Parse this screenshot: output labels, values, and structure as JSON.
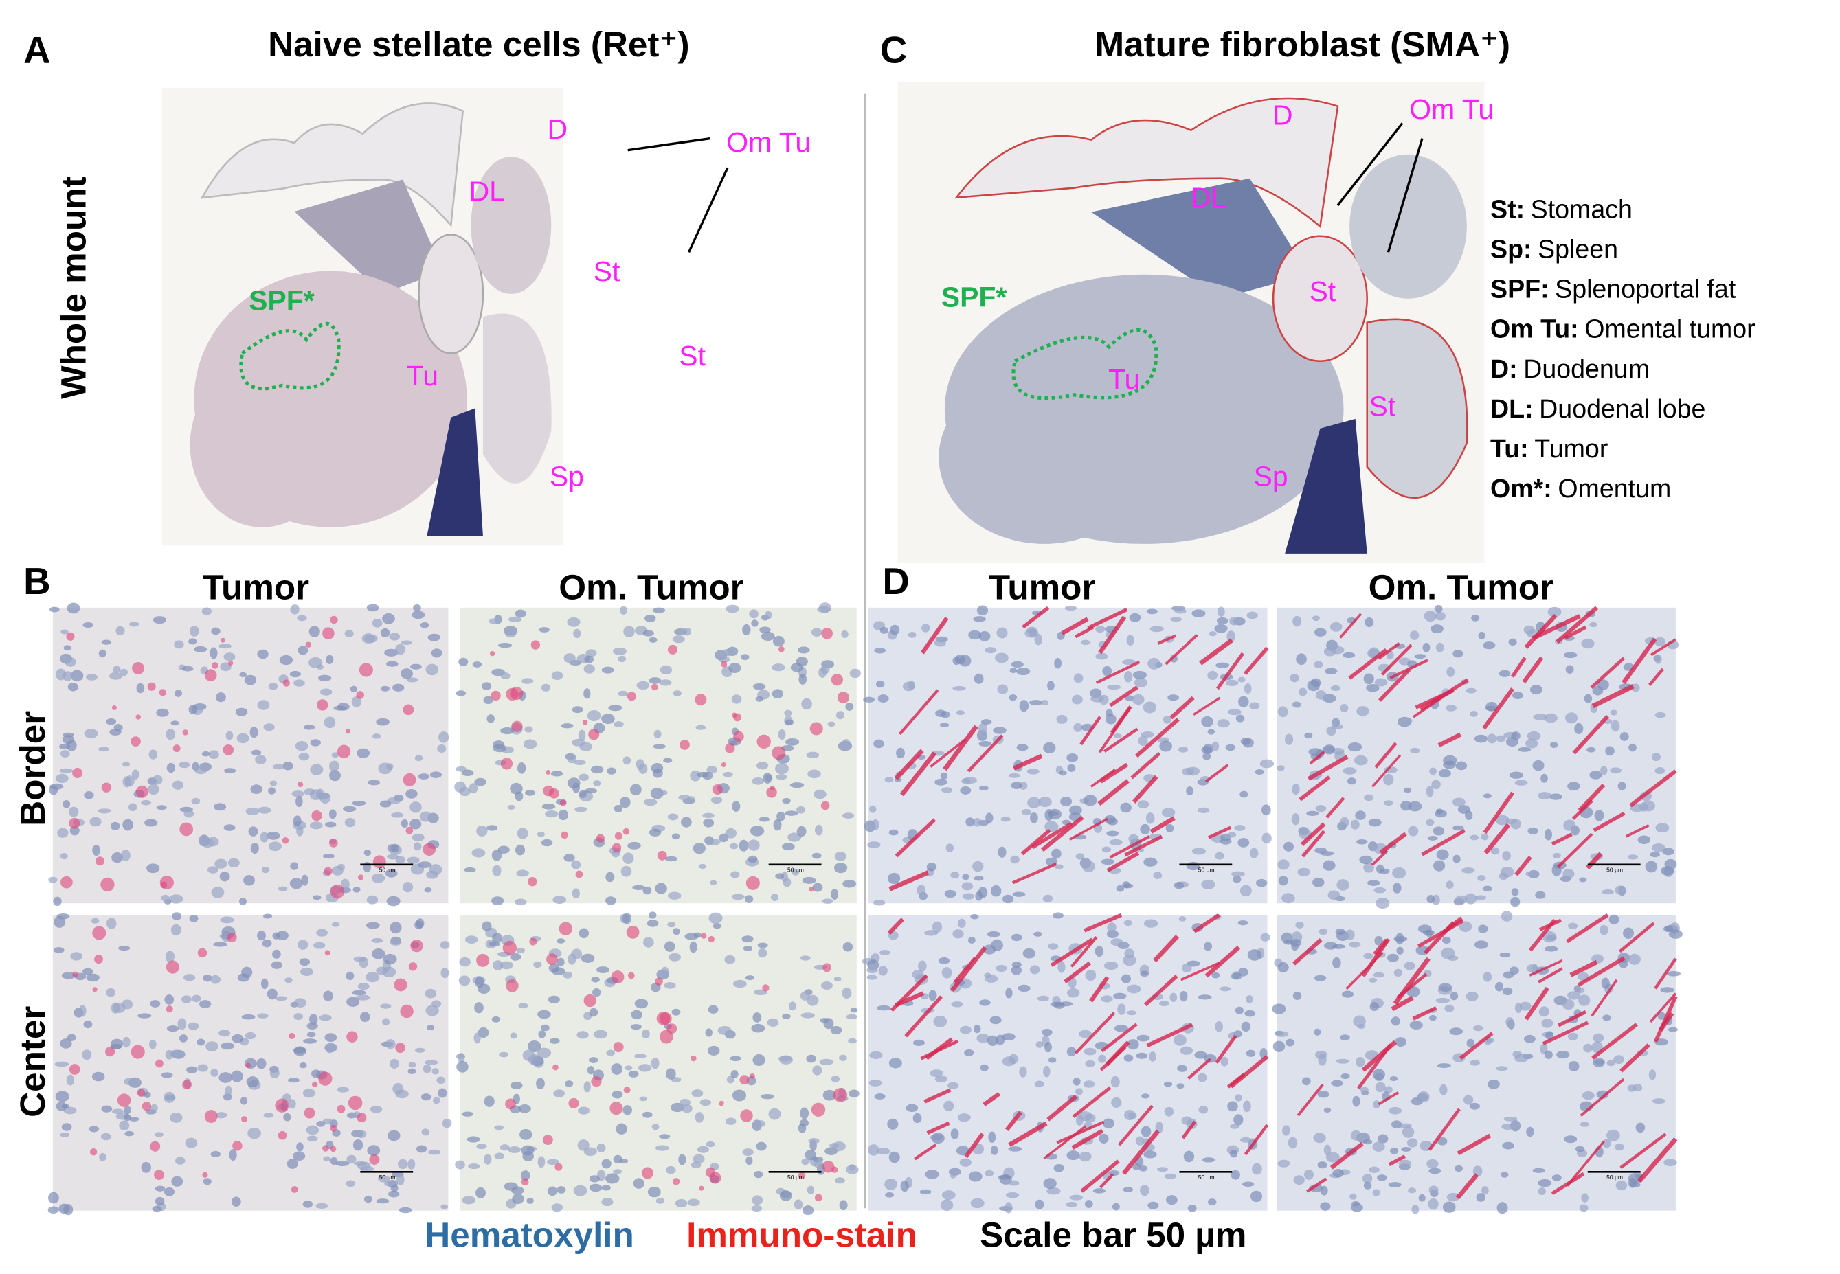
{
  "panel_a": {
    "letter": "A",
    "title": "Naive stellate cells (Ret⁺)",
    "labels": [
      "D",
      "DL",
      "Om Tu",
      "St",
      "St",
      "Tu",
      "Sp"
    ],
    "spf_label": "SPF*"
  },
  "panel_c": {
    "letter": "C",
    "title": "Mature fibroblast (SMA⁺)",
    "labels": [
      "D",
      "DL",
      "Om Tu",
      "St",
      "St",
      "Tu",
      "Sp"
    ],
    "spf_label": "SPF*"
  },
  "row_label": "Whole mount",
  "legend": [
    {
      "abbr": "St:",
      "text": "Stomach"
    },
    {
      "abbr": "Sp:",
      "text": "Spleen"
    },
    {
      "abbr": "SPF:",
      "text": "Splenoportal fat"
    },
    {
      "abbr": "Om Tu:",
      "text": "Omental tumor"
    },
    {
      "abbr": "D:",
      "text": "Duodenum"
    },
    {
      "abbr": "DL:",
      "text": "Duodenal lobe"
    },
    {
      "abbr": "Tu:",
      "text": "Tumor"
    },
    {
      "abbr": "Om*:",
      "text": "Omentum"
    }
  ],
  "panel_b": {
    "letter": "B",
    "columns": [
      "Tumor",
      "Om. Tumor"
    ],
    "rows": [
      "Border",
      "Center"
    ]
  },
  "panel_d": {
    "letter": "D",
    "columns": [
      "Tumor",
      "Om. Tumor"
    ]
  },
  "scale_bar_text": "50 µm",
  "footer": {
    "hematoxylin": "Hematoxylin",
    "immuno": "Immuno-stain",
    "scale": "Scale bar 50 µm"
  }
}
